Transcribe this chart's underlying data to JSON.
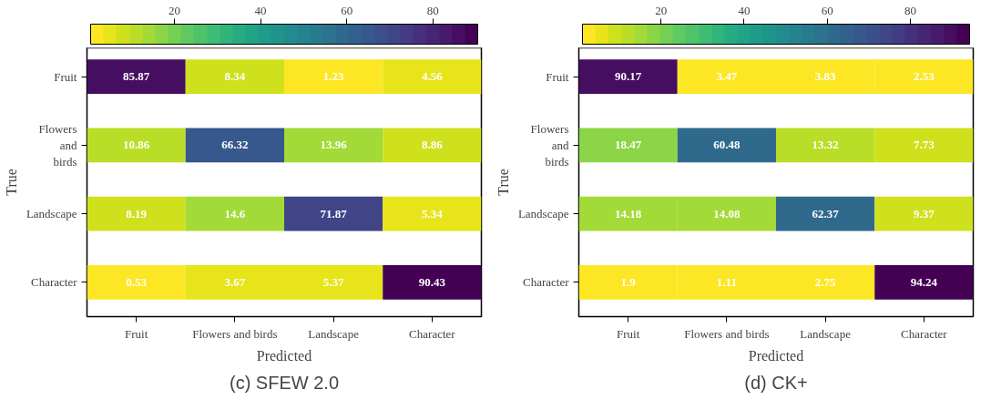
{
  "chart_data": [
    {
      "type": "heatmap",
      "title": "(c) SFEW 2.0",
      "xlabel": "Predicted",
      "ylabel": "True",
      "categories": [
        "Fruit",
        "Flowers and birds",
        "Landscape",
        "Character"
      ],
      "y_categories": [
        "Fruit",
        "Flowers and birds",
        "Landscape",
        "Character"
      ],
      "cells": [
        [
          85.87,
          8.34,
          1.23,
          4.56
        ],
        [
          10.86,
          66.32,
          13.96,
          8.86
        ],
        [
          8.19,
          14.6,
          71.87,
          5.34
        ],
        [
          0.53,
          3.67,
          5.37,
          90.43
        ]
      ],
      "clim": [
        0.53,
        90.43
      ],
      "cticks": [
        20,
        40,
        60,
        80
      ],
      "data_labels": true
    },
    {
      "type": "heatmap",
      "title": "(d) CK+",
      "xlabel": "Predicted",
      "ylabel": "True",
      "categories": [
        "Fruit",
        "Flowers and birds",
        "Landscape",
        "Character"
      ],
      "y_categories": [
        "Fruit",
        "Flowers and birds",
        "Landscape",
        "Character"
      ],
      "cells": [
        [
          90.17,
          3.47,
          3.83,
          2.53
        ],
        [
          18.47,
          60.48,
          13.32,
          7.73
        ],
        [
          14.18,
          14.08,
          62.37,
          9.37
        ],
        [
          1.9,
          1.11,
          2.75,
          94.24
        ]
      ],
      "clim": [
        1.11,
        94.24
      ],
      "cticks": [
        20,
        40,
        60,
        80
      ],
      "data_labels": true
    }
  ]
}
